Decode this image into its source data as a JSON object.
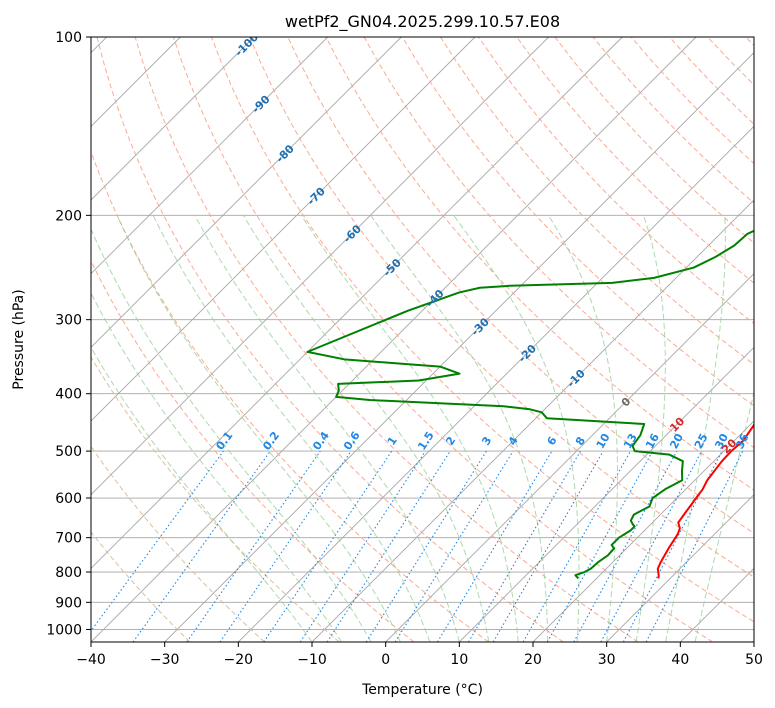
{
  "chart_data": {
    "type": "line",
    "title": "wetPf2_GN04.2025.299.10.57.E08",
    "xlabel": "Temperature (°C)",
    "ylabel": "Pressure (hPa)",
    "xlim": [
      -40,
      50
    ],
    "ylim": [
      1050,
      100
    ],
    "x_ticks": [
      -40,
      -30,
      -20,
      -10,
      0,
      10,
      20,
      30,
      40,
      50
    ],
    "x_tick_labels": [
      "−40",
      "−30",
      "−20",
      "−10",
      "0",
      "10",
      "20",
      "30",
      "40",
      "50"
    ],
    "y_ticks": [
      100,
      200,
      300,
      400,
      500,
      600,
      700,
      800,
      900,
      1000
    ],
    "y_tick_labels": [
      "100",
      "200",
      "300",
      "400",
      "500",
      "600",
      "700",
      "800",
      "900",
      "1000"
    ],
    "series": [
      {
        "name": "temperature",
        "color": "#ff0000",
        "points": [
          [
            28.4,
            820
          ],
          [
            28.0,
            810
          ],
          [
            27.0,
            790
          ],
          [
            26.5,
            770
          ],
          [
            25.7,
            730
          ],
          [
            25.0,
            690
          ],
          [
            24.5,
            675
          ],
          [
            23.5,
            660
          ],
          [
            23.2,
            640
          ],
          [
            22.6,
            600
          ],
          [
            22.3,
            580
          ],
          [
            21.7,
            560
          ],
          [
            21.1,
            520
          ],
          [
            21.0,
            500
          ],
          [
            21.2,
            480
          ],
          [
            20.5,
            450
          ],
          [
            20.0,
            440
          ],
          [
            20.3,
            430
          ],
          [
            21.1,
            420
          ],
          [
            21.3,
            410
          ],
          [
            21.4,
            400
          ],
          [
            21.2,
            390
          ],
          [
            20.5,
            380
          ],
          [
            19.3,
            370
          ],
          [
            18.5,
            360
          ],
          [
            17.2,
            330
          ],
          [
            15.8,
            300
          ],
          [
            14.3,
            280
          ],
          [
            12.7,
            260
          ],
          [
            10.5,
            240
          ],
          [
            7.7,
            220
          ],
          [
            6.0,
            200
          ],
          [
            3.8,
            180
          ],
          [
            2.2,
            160
          ],
          [
            0.3,
            140
          ],
          [
            -1.3,
            125
          ],
          [
            -1.8,
            115
          ],
          [
            -2.2,
            110
          ],
          [
            -2.2,
            104
          ],
          [
            -1.7,
            100
          ]
        ]
      },
      {
        "name": "dewpoint",
        "color": "#008000",
        "points": [
          [
            17.5,
            820
          ],
          [
            16.7,
            810
          ],
          [
            17.5,
            800
          ],
          [
            17.9,
            790
          ],
          [
            18.0,
            770
          ],
          [
            18.4,
            750
          ],
          [
            18.3,
            730
          ],
          [
            17.5,
            720
          ],
          [
            17.5,
            700
          ],
          [
            18.1,
            680
          ],
          [
            18.1,
            670
          ],
          [
            17.6,
            665
          ],
          [
            16.8,
            655
          ],
          [
            16.4,
            640
          ],
          [
            17.4,
            620
          ],
          [
            16.7,
            600
          ],
          [
            17.2,
            580
          ],
          [
            18.3,
            560
          ],
          [
            17.0,
            540
          ],
          [
            15.8,
            520
          ],
          [
            13.1,
            507
          ],
          [
            7.9,
            500
          ],
          [
            6.9,
            490
          ],
          [
            6.5,
            470
          ],
          [
            5.5,
            450
          ],
          [
            -8.5,
            440
          ],
          [
            -10.0,
            430
          ],
          [
            -12.0,
            425
          ],
          [
            -16.0,
            420
          ],
          [
            -35.0,
            410
          ],
          [
            -40.0,
            405
          ],
          [
            -40.5,
            395
          ],
          [
            -41.5,
            385
          ],
          [
            -31.0,
            380
          ],
          [
            -26.4,
            370
          ],
          [
            -30.0,
            360
          ],
          [
            -37.0,
            355
          ],
          [
            -44.0,
            350
          ],
          [
            -50.0,
            340
          ],
          [
            -42.0,
            290
          ],
          [
            -37.5,
            270
          ],
          [
            -35.3,
            265
          ],
          [
            -31.5,
            263
          ],
          [
            -18.0,
            260
          ],
          [
            -13.0,
            255
          ],
          [
            -9.0,
            245
          ],
          [
            -7.5,
            235
          ],
          [
            -6.5,
            225
          ],
          [
            -6.3,
            215
          ],
          [
            -5.0,
            208
          ],
          [
            -1.0,
            198
          ],
          [
            0.0,
            190
          ],
          [
            -0.5,
            180
          ],
          [
            -0.3,
            170
          ],
          [
            0.4,
            160
          ],
          [
            0.0,
            153
          ],
          [
            -1.6,
            147
          ],
          [
            -3.0,
            140
          ],
          [
            -3.6,
            133
          ],
          [
            -3.5,
            127
          ],
          [
            -3.4,
            120
          ],
          [
            -2.2,
            110
          ],
          [
            -1.1,
            102
          ],
          [
            -0.9,
            100
          ]
        ]
      }
    ],
    "isotherm_labels": [
      "-100",
      "-90",
      "-80",
      "-70",
      "-60",
      "-50",
      "-40",
      "-30",
      "-20",
      "-10",
      "0",
      "10",
      "20",
      "30",
      "40"
    ],
    "mixing_ratio_labels": [
      "0.1",
      "0.2",
      "0.4",
      "0.6",
      "1",
      "1.5",
      "2",
      "3",
      "4",
      "6",
      "8",
      "10",
      "13",
      "16",
      "20",
      "25",
      "30",
      "36"
    ],
    "colors": {
      "isotherm": "#a6a6a6",
      "isobar": "#a6a6a6",
      "dry_adiabat": "#f9a185",
      "moist_adiabat": "#98d09a",
      "mixing_ratio": "#1e88e5",
      "isotherm_label_cold": "#1f6fb0",
      "isotherm_zero": "#6b6b6b",
      "isotherm_label_warm": "#d62728",
      "dry_adiabat_cold": "#d9b895"
    }
  }
}
